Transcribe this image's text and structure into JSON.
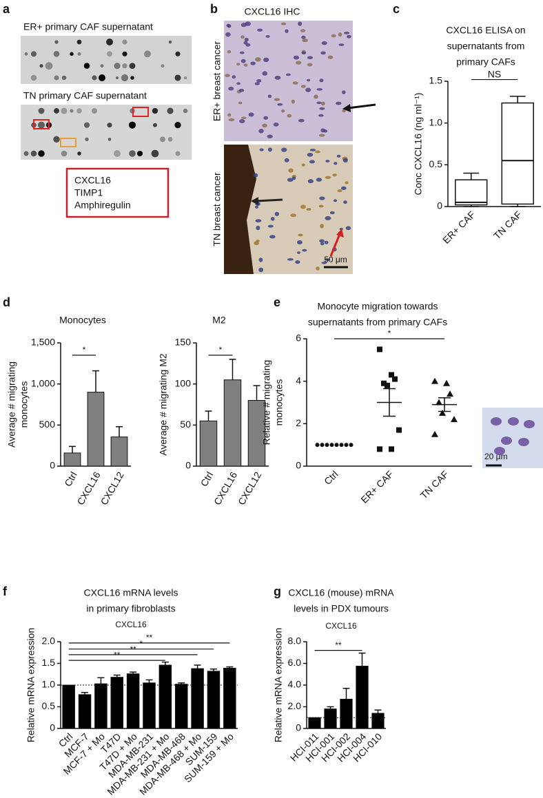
{
  "figure_panels": {
    "a": {
      "label": "a",
      "titles": [
        "ER+ primary CAF supernatant",
        "TN primary CAF supernatant"
      ],
      "legend_lines": [
        "CXCL16",
        "TIMP1",
        "Amphiregulin"
      ]
    },
    "b": {
      "label": "b",
      "title": "CXCL16 IHC",
      "row_labels": [
        "ER+ breast cancer",
        "TN breast cancer"
      ],
      "scale_bar": "50 μm"
    },
    "e_inset": {
      "scale_bar": "20 μm"
    }
  },
  "chart_data": [
    {
      "type": "box",
      "panel": "c",
      "title": [
        "CXCL16 ELISA on",
        "supernatants from",
        "primary CAFs"
      ],
      "ylabel": [
        "Conc CXCL16 (ng ml⁻¹)"
      ],
      "categories": [
        "ER+ CAF",
        "TN CAF"
      ],
      "min": [
        0,
        0
      ],
      "q1": [
        0.02,
        0.03
      ],
      "median": [
        0.05,
        0.55
      ],
      "q3": [
        0.32,
        1.24
      ],
      "max": [
        0.4,
        1.32
      ],
      "ylim": [
        0,
        1.5
      ],
      "yticks": [
        0,
        0.5,
        {
          "value": 1,
          "label": "1.0"
        },
        1.5
      ],
      "annotations": [
        {
          "from": 0,
          "to": 1,
          "y": 1.52,
          "label": "NS"
        }
      ]
    },
    {
      "type": "bar",
      "panel": "d",
      "title": [
        "Monocytes"
      ],
      "ylabel": [
        "Average # migrating",
        "monocytes"
      ],
      "color": "#808080",
      "categories": [
        "Ctrl",
        "CXCL16",
        "CXCL12"
      ],
      "values": [
        160,
        900,
        355
      ],
      "errors": [
        80,
        260,
        125
      ],
      "ylim": [
        0,
        1500
      ],
      "yticks": [
        0,
        500,
        {
          "value": 1000,
          "label": "1,000"
        },
        {
          "value": 1500,
          "label": "1,500"
        }
      ],
      "annotations": [
        {
          "from": 0,
          "to": 1,
          "y": 1350,
          "label": "*"
        }
      ]
    },
    {
      "type": "bar",
      "title": [
        "M2"
      ],
      "ylabel": [
        "Average # migrating M2"
      ],
      "color": "#808080",
      "categories": [
        "Ctrl",
        "CXCL16",
        "CXCL12"
      ],
      "values": [
        55,
        105,
        80
      ],
      "errors": [
        12,
        25,
        18
      ],
      "ylim": [
        0,
        150
      ],
      "yticks": [
        0,
        50,
        100,
        150
      ],
      "annotations": [
        {
          "from": 0,
          "to": 1,
          "y": 135,
          "label": "*"
        }
      ]
    },
    {
      "type": "strip",
      "panel": "e",
      "title": [
        "Monocyte migration towards",
        "supernatants from primary CAFs"
      ],
      "ylabel": [
        "Relative # migrating",
        "monocytes"
      ],
      "categories": [
        "Ctrl",
        "ER+ CAF",
        "TN CAF"
      ],
      "series": [
        {
          "marker": "circle",
          "values": [
            1,
            1,
            1,
            1,
            1,
            1,
            1,
            1
          ]
        },
        {
          "marker": "square",
          "values": [
            5.5,
            4.3,
            4.1,
            3.9,
            3.8,
            1.7,
            0.8,
            0.8
          ],
          "mean": 3.0,
          "sem": 0.65
        },
        {
          "marker": "triangle",
          "values": [
            4.0,
            3.9,
            3.4,
            3.0,
            2.5,
            2.2,
            1.5
          ],
          "mean": 2.9,
          "sem": 0.32
        }
      ],
      "ylim": [
        0,
        6
      ],
      "yticks": [
        0,
        2,
        4,
        6
      ],
      "annotations": [
        {
          "from": 0,
          "to": 2,
          "y": 6,
          "label": "*"
        }
      ]
    },
    {
      "type": "bar",
      "panel": "f",
      "title": [
        "CXCL16 mRNA levels",
        "in primary fibroblasts"
      ],
      "subtitle": "CXCL16",
      "ylabel": [
        "Relative mRNA expression"
      ],
      "color": "#000000",
      "categories": [
        "Ctrl",
        "MCF-7",
        "MCF-7 + Mo",
        "T47D",
        "T47D + Mo",
        "MDA-MB-231",
        "MDA-MB-231 + Mo",
        "MDA-MB-468",
        "MDA-MB-468 + Mo",
        "SUM-159",
        "SUM-159 + Mo"
      ],
      "values": [
        1,
        0.78,
        1.03,
        1.18,
        1.26,
        1.05,
        1.46,
        1.02,
        1.38,
        1.32,
        1.39
      ],
      "errors": [
        null,
        0.05,
        0.14,
        0.05,
        0.04,
        0.07,
        0.07,
        0.03,
        0.08,
        0.05,
        0.03
      ],
      "ylim": [
        0,
        2
      ],
      "yticks": [
        0,
        0.5,
        {
          "value": 1,
          "label": "1.0"
        },
        1.5,
        {
          "value": 2,
          "label": "2.0"
        }
      ],
      "hline": 1,
      "annotations": [
        {
          "from": 0,
          "to": 10,
          "y": 1.97,
          "label": "**"
        },
        {
          "from": 0,
          "to": 9,
          "y": 1.83,
          "label": "*"
        },
        {
          "from": 0,
          "to": 8,
          "y": 1.7,
          "label": "**"
        },
        {
          "from": 0,
          "to": 6,
          "y": 1.57,
          "label": "**"
        }
      ]
    },
    {
      "type": "bar",
      "panel": "g",
      "title": [
        "CXCL16 (mouse) mRNA",
        "levels in PDX tumours"
      ],
      "subtitle": "CXCL16",
      "ylabel": [
        "Relative mRNA expression"
      ],
      "color": "#000000",
      "categories": [
        "HCI-011",
        "HCI-001",
        "HCI-002",
        "HCI-004",
        "HCI-010"
      ],
      "values": [
        1,
        1.8,
        2.7,
        5.75,
        1.4
      ],
      "errors": [
        null,
        0.2,
        1.0,
        1.2,
        0.3
      ],
      "ylim": [
        0,
        8
      ],
      "yticks": [
        0,
        {
          "value": 2,
          "label": "2.0"
        },
        {
          "value": 4,
          "label": "4.0"
        },
        {
          "value": 6,
          "label": "6.0"
        },
        {
          "value": 8,
          "label": "8.0"
        }
      ],
      "hline": 1,
      "annotations": [
        {
          "from": 0,
          "to": 3,
          "y": 7.2,
          "label": "**"
        }
      ]
    }
  ]
}
